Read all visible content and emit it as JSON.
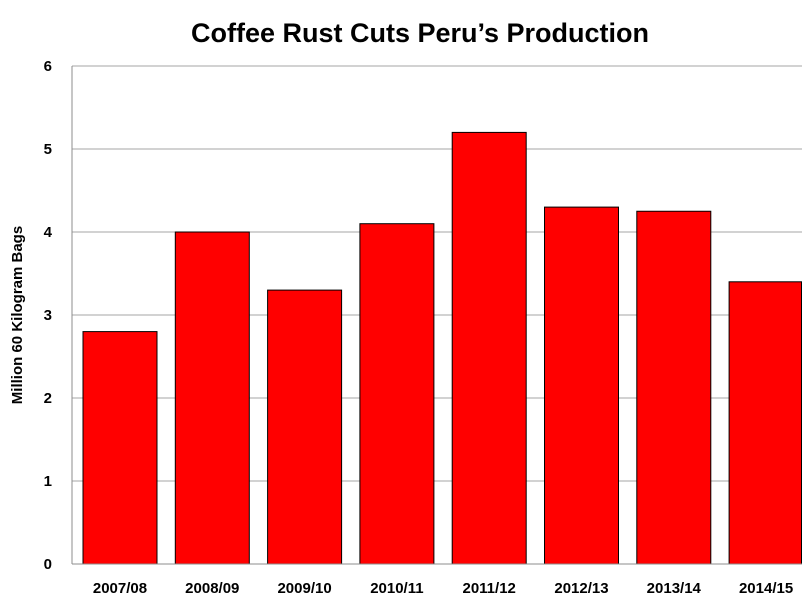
{
  "chart_data": {
    "type": "bar",
    "title": "Coffee Rust Cuts Peru’s Production",
    "xlabel": "",
    "ylabel": "Million 60 Kilogram Bags",
    "categories": [
      "2007/08",
      "2008/09",
      "2009/10",
      "2010/11",
      "2011/12",
      "2012/13",
      "2013/14",
      "2014/15"
    ],
    "values": [
      2.8,
      4.0,
      3.3,
      4.1,
      5.2,
      4.3,
      4.25,
      3.4
    ],
    "ylim": [
      0,
      6
    ],
    "yticks": [
      "0",
      "1",
      "2",
      "3",
      "4",
      "5",
      "6"
    ],
    "grid": true,
    "legend": "none",
    "bar_color": "#ff0000"
  }
}
